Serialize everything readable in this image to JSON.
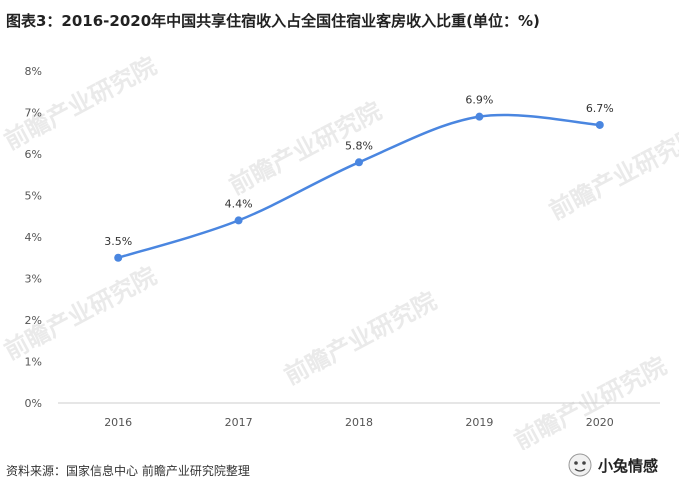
{
  "chart_data": {
    "type": "line",
    "title": "图表3：2016-2020年中国共享住宿收入占全国住宿业客房收入比重(单位：%)",
    "categories": [
      "2016",
      "2017",
      "2018",
      "2019",
      "2020"
    ],
    "series": [
      {
        "values": [
          3.5,
          4.4,
          5.8,
          6.9,
          6.7
        ],
        "labels": [
          "3.5%",
          "4.4%",
          "5.8%",
          "6.9%",
          "6.7%"
        ],
        "color": "#4a86e0"
      }
    ],
    "ylim": [
      0,
      8
    ],
    "yticks": [
      "0%",
      "1%",
      "2%",
      "3%",
      "4%",
      "5%",
      "6%",
      "7%",
      "8%"
    ],
    "xlabel": "",
    "ylabel": "",
    "grid": false,
    "smooth": true
  },
  "source": "资料来源：国家信息中心 前瞻产业研究院整理",
  "watermark": "前瞻产业研究院",
  "logo_text": "小兔情感"
}
